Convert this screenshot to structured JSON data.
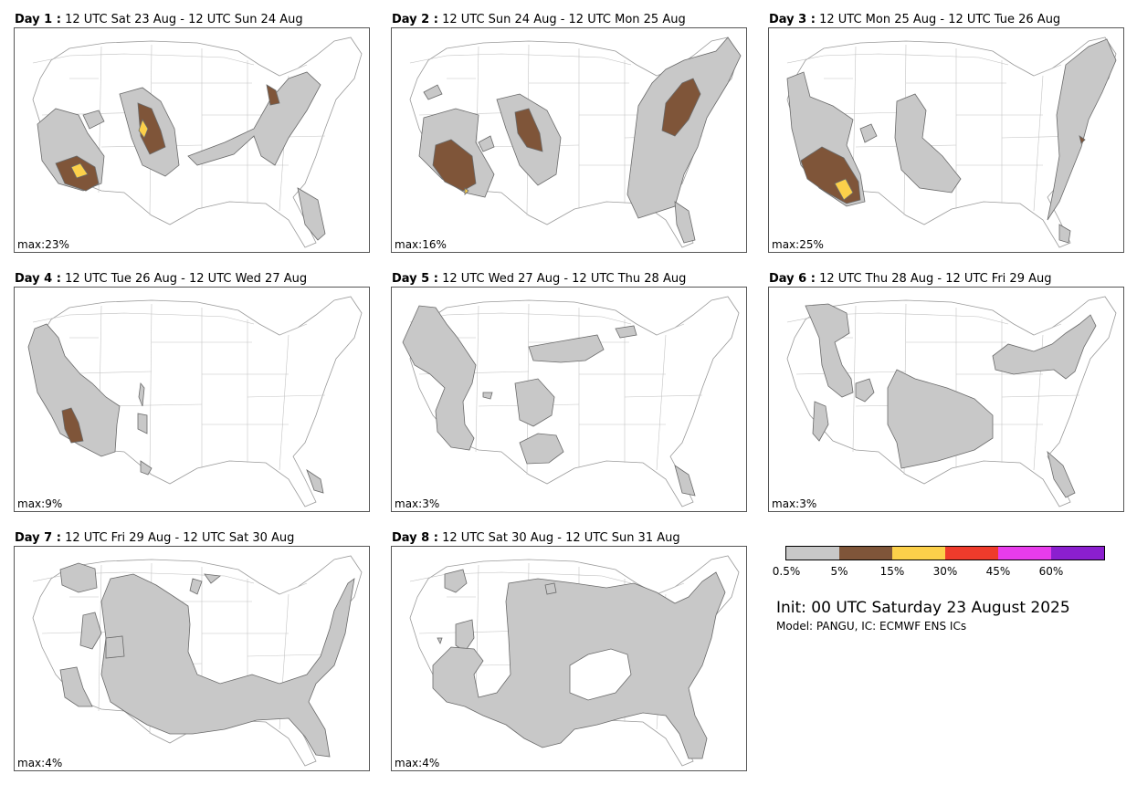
{
  "panels": [
    {
      "day": "Day 1 :",
      "period": "12 UTC Sat 23 Aug - 12 UTC Sun 24 Aug",
      "max": "max:23%"
    },
    {
      "day": "Day 2 :",
      "period": "12 UTC Sun 24 Aug - 12 UTC Mon 25 Aug",
      "max": "max:16%"
    },
    {
      "day": "Day 3 :",
      "period": "12 UTC Mon 25 Aug - 12 UTC Tue 26 Aug",
      "max": "max:25%"
    },
    {
      "day": "Day 4 :",
      "period": "12 UTC Tue 26 Aug - 12 UTC Wed 27 Aug",
      "max": "max:9%"
    },
    {
      "day": "Day 5 :",
      "period": "12 UTC Wed 27 Aug - 12 UTC Thu 28 Aug",
      "max": "max:3%"
    },
    {
      "day": "Day 6 :",
      "period": "12 UTC Thu 28 Aug - 12 UTC Fri 29 Aug",
      "max": "max:3%"
    },
    {
      "day": "Day 7 :",
      "period": "12 UTC Fri 29 Aug - 12 UTC Sat 30 Aug",
      "max": "max:4%"
    },
    {
      "day": "Day 8 :",
      "period": "12 UTC Sat 30 Aug - 12 UTC Sun 31 Aug",
      "max": "max:4%"
    }
  ],
  "legend": {
    "ticks": [
      "0.5%",
      "5%",
      "15%",
      "30%",
      "45%",
      "60%"
    ],
    "colors": [
      "#c8c8c8",
      "#7f5539",
      "#fcd04a",
      "#ee3b2b",
      "#e83ceb",
      "#8b1fcf"
    ]
  },
  "init_text": "Init: 00 UTC Saturday 23 August 2025",
  "model_text": "Model: PANGU, IC: ECMWF ENS ICs"
}
